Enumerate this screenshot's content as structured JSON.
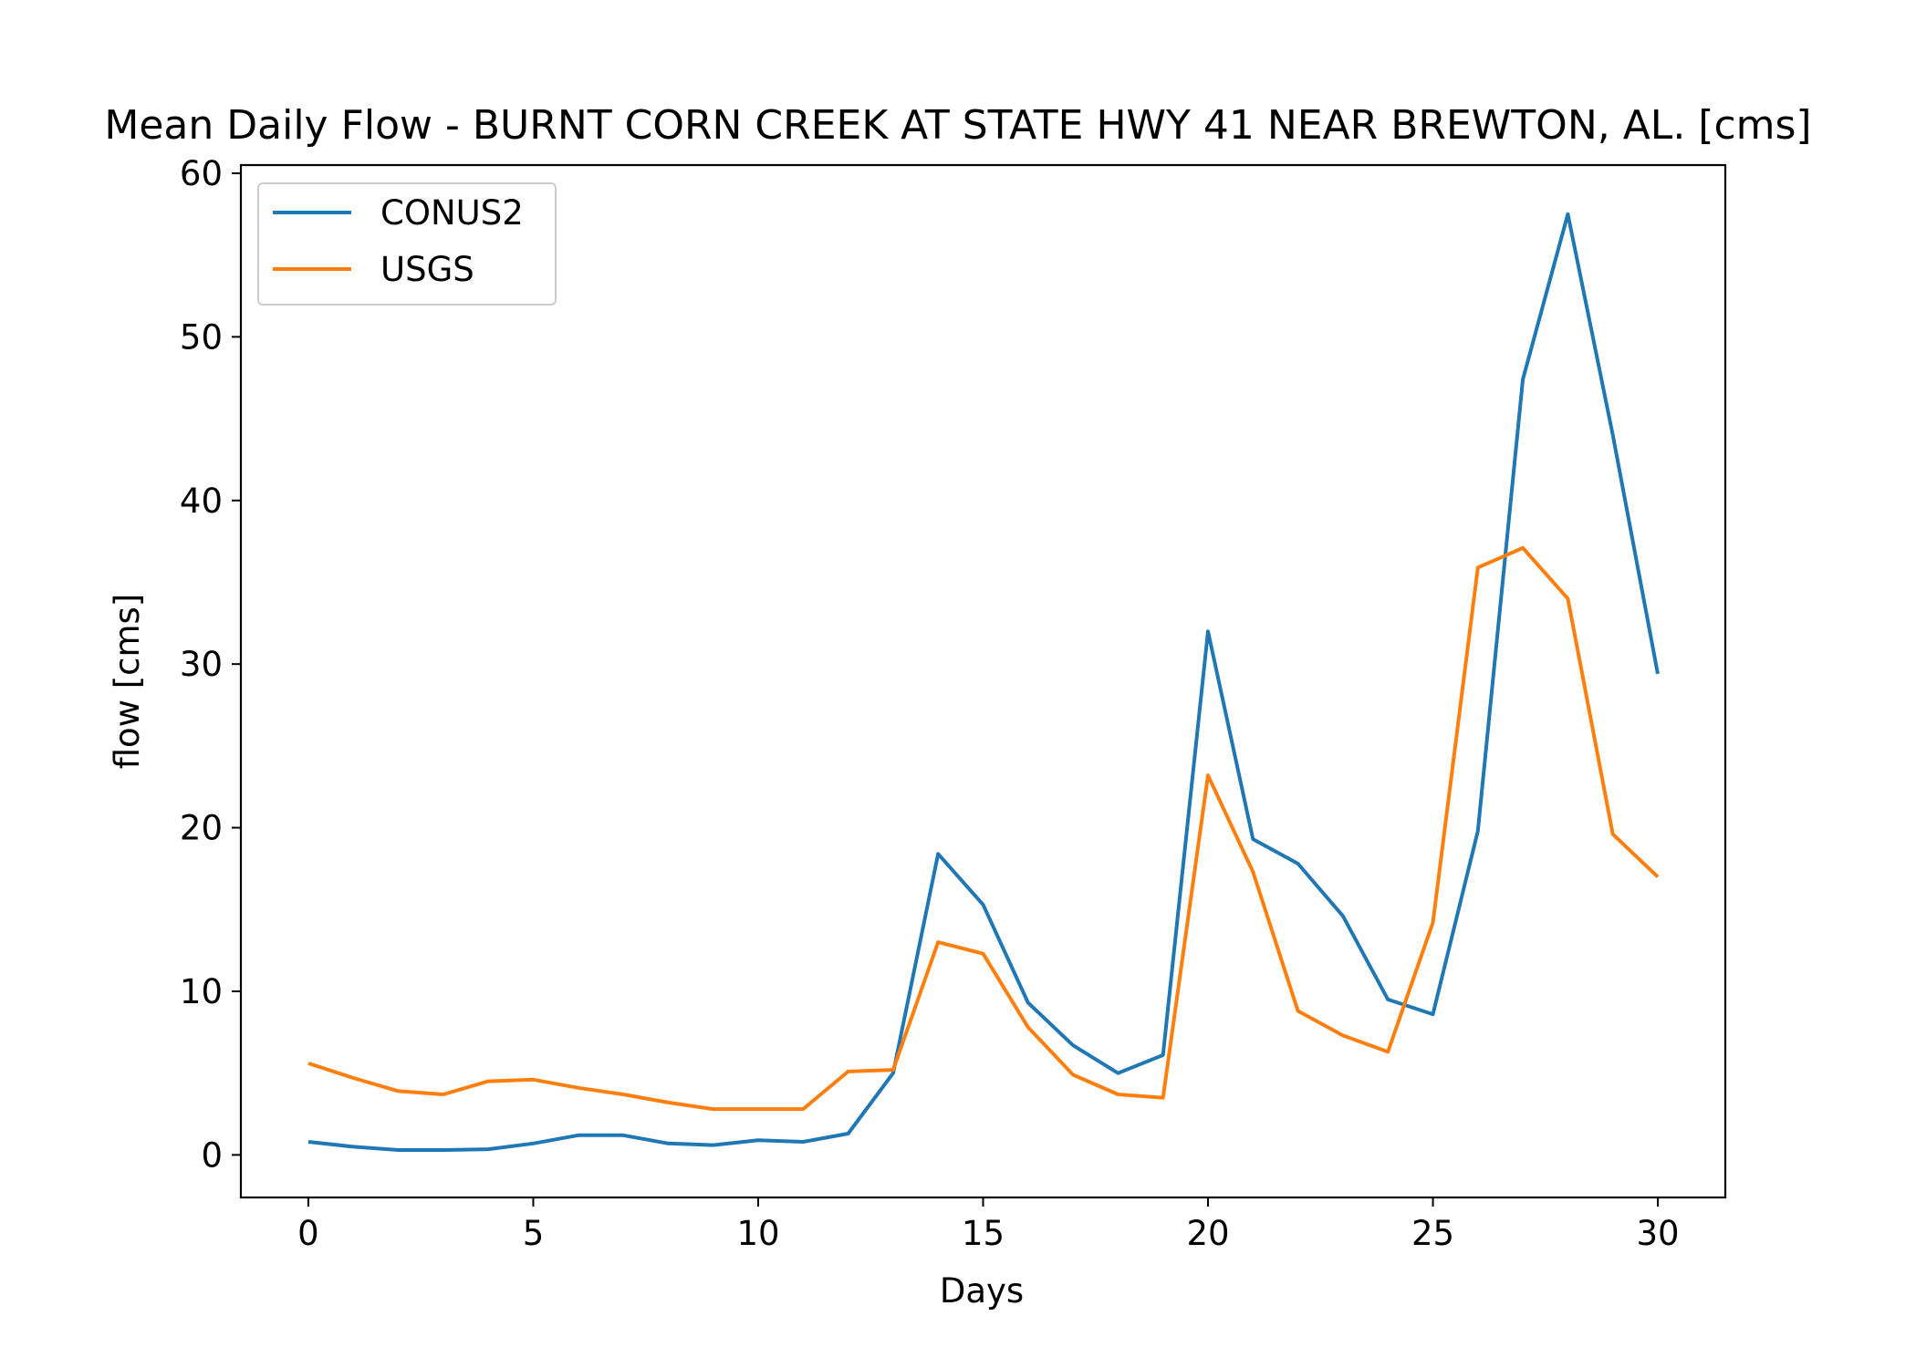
{
  "chart_data": {
    "type": "line",
    "title": "Mean Daily Flow - BURNT CORN CREEK AT STATE HWY 41 NEAR BREWTON, AL. [cms]",
    "xlabel": "Days",
    "ylabel": "flow [cms]",
    "xlim": [
      -1.5,
      31.5
    ],
    "ylim": [
      -2.6,
      60.5
    ],
    "xticks": [
      0,
      5,
      10,
      15,
      20,
      25,
      30
    ],
    "yticks": [
      0,
      10,
      20,
      30,
      40,
      50,
      60
    ],
    "grid": false,
    "legend_position": "upper-left",
    "x": [
      0,
      1,
      2,
      3,
      4,
      5,
      6,
      7,
      8,
      9,
      10,
      11,
      12,
      13,
      14,
      15,
      16,
      17,
      18,
      19,
      20,
      21,
      22,
      23,
      24,
      25,
      26,
      27,
      28,
      29,
      30
    ],
    "series": [
      {
        "name": "CONUS2",
        "color": "#1f77b4",
        "values": [
          0.8,
          0.5,
          0.3,
          0.3,
          0.35,
          0.7,
          1.2,
          1.2,
          0.7,
          0.6,
          0.9,
          0.8,
          1.3,
          5.0,
          18.4,
          15.3,
          9.3,
          6.7,
          5.0,
          6.1,
          32.0,
          19.3,
          17.8,
          14.6,
          9.5,
          8.6,
          19.8,
          47.4,
          57.5,
          44.0,
          29.4
        ]
      },
      {
        "name": "USGS",
        "color": "#ff7f0e",
        "values": [
          5.6,
          4.7,
          3.9,
          3.7,
          4.5,
          4.6,
          4.1,
          3.7,
          3.2,
          2.8,
          2.8,
          2.8,
          5.1,
          5.2,
          13.0,
          12.3,
          7.8,
          4.9,
          3.7,
          3.5,
          23.2,
          17.3,
          8.8,
          7.3,
          6.3,
          14.2,
          35.9,
          37.1,
          34.0,
          19.6,
          17.0
        ]
      }
    ]
  }
}
